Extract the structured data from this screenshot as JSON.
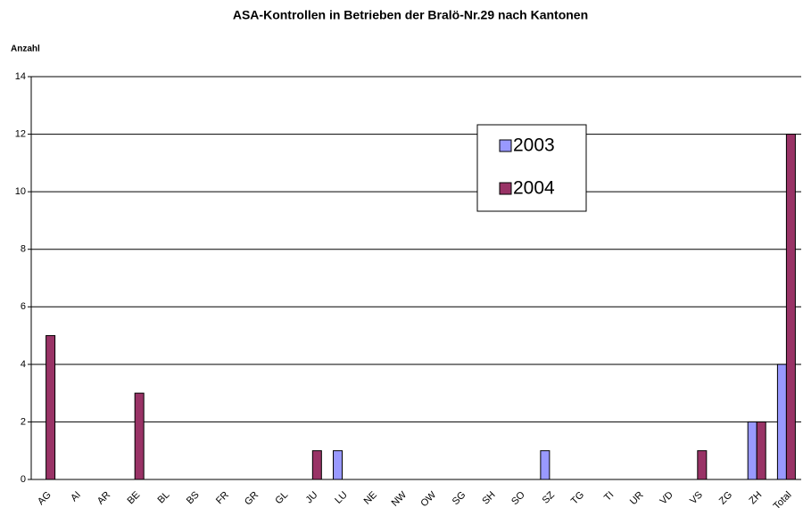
{
  "chart_data": {
    "type": "bar",
    "title": "ASA-Kontrollen in Betrieben der Bralö-Nr.29 nach Kantonen",
    "y_label": "Anzahl",
    "categories": [
      "AG",
      "AI",
      "AR",
      "BE",
      "BL",
      "BS",
      "FR",
      "GR",
      "GL",
      "JU",
      "LU",
      "NE",
      "NW",
      "OW",
      "SG",
      "SH",
      "SO",
      "SZ",
      "TG",
      "TI",
      "UR",
      "VD",
      "VS",
      "ZG",
      "ZH",
      "Total"
    ],
    "series": [
      {
        "name": "2003",
        "color": "#9999ff",
        "values": [
          0,
          0,
          0,
          0,
          0,
          0,
          0,
          0,
          0,
          0,
          1,
          0,
          0,
          0,
          0,
          0,
          0,
          1,
          0,
          0,
          0,
          0,
          0,
          0,
          2,
          4
        ]
      },
      {
        "name": "2004",
        "color": "#993366",
        "values": [
          5,
          0,
          0,
          3,
          0,
          0,
          0,
          0,
          0,
          1,
          0,
          0,
          0,
          0,
          0,
          0,
          0,
          0,
          0,
          0,
          0,
          0,
          1,
          0,
          2,
          12
        ]
      }
    ],
    "ylim": [
      0,
      14
    ],
    "yticks": [
      0,
      2,
      4,
      6,
      8,
      10,
      12,
      14
    ],
    "grid": true,
    "legend": "upper-center"
  }
}
